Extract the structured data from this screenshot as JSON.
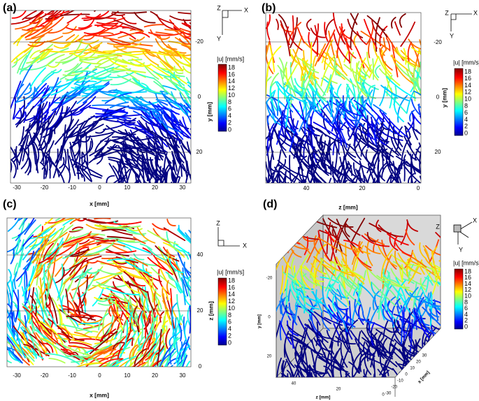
{
  "panels": [
    {
      "label": "(a)",
      "x_axis": {
        "label": "x [mm]",
        "ticks": [
          "-30",
          "-20",
          "-10",
          "0",
          "10",
          "20",
          "30"
        ]
      },
      "y_axis": {
        "label": "y [mm]",
        "ticks": [
          "-20",
          "0",
          "20"
        ]
      },
      "triad": [
        "Z",
        "X",
        "Y"
      ],
      "colorbar": {
        "title": "|u| [mm/s]",
        "ticks": [
          "18",
          "16",
          "14",
          "12",
          "10",
          "8",
          "6",
          "4",
          "2",
          "0"
        ]
      }
    },
    {
      "label": "(b)",
      "x_axis": {
        "ticks": [
          "40",
          "20",
          "0"
        ]
      },
      "y_axis": {
        "label": "y [mm]",
        "ticks": [
          "-20",
          "0",
          "20"
        ]
      },
      "triad": [
        "Z",
        "X",
        "Y"
      ],
      "colorbar": {
        "title": "|u| [mm/s]",
        "ticks": [
          "18",
          "16",
          "14",
          "12",
          "10",
          "8",
          "6",
          "4",
          "2",
          "0"
        ]
      }
    },
    {
      "label": "(c)",
      "x_axis": {
        "label": "x [mm]",
        "ticks": [
          "-30",
          "-20",
          "-10",
          "0",
          "10",
          "20",
          "30"
        ]
      },
      "y_axis": {
        "label": "z [mm]",
        "ticks": [
          "40",
          "20",
          "0"
        ]
      },
      "triad": [
        "Z",
        "X"
      ],
      "colorbar": {
        "title": "|u| [mm/s]",
        "ticks": [
          "18",
          "16",
          "14",
          "12",
          "10",
          "8",
          "6",
          "4",
          "2",
          "0"
        ]
      }
    },
    {
      "label": "(d)",
      "top_label": "z [mm]",
      "z_axis": {
        "label": "z [mm]",
        "ticks": [
          "40",
          "20",
          "0"
        ]
      },
      "x_axis": {
        "label": "x [mm]",
        "ticks": [
          "30",
          "20",
          "10",
          "0",
          "-10",
          "-20",
          "-30"
        ]
      },
      "y_axis": {
        "label": "y [mm]",
        "ticks": [
          "-20",
          "0",
          "20"
        ]
      },
      "triad": [
        "Z",
        "X",
        "Y"
      ],
      "colorbar": {
        "title": "|u| [mm/s]",
        "ticks": [
          "18",
          "16",
          "14",
          "12",
          "10",
          "8",
          "6",
          "4",
          "2",
          "0"
        ]
      }
    }
  ]
}
